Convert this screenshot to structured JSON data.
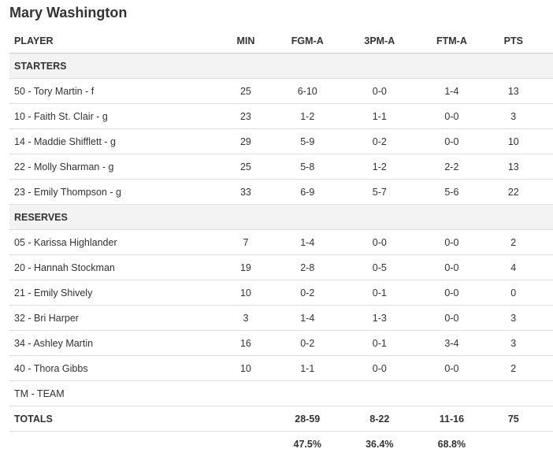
{
  "team_name": "Mary Washington",
  "headers": {
    "player": "PLAYER",
    "min": "MIN",
    "fgm": "FGM-A",
    "tpm": "3PM-A",
    "ftm": "FTM-A",
    "pts": "PTS"
  },
  "starters_label": "STARTERS",
  "starters": [
    {
      "player": "50 - Tory Martin - f",
      "min": "25",
      "fgm": "6-10",
      "tpm": "0-0",
      "ftm": "1-4",
      "pts": "13"
    },
    {
      "player": "10 - Faith St. Clair - g",
      "min": "23",
      "fgm": "1-2",
      "tpm": "1-1",
      "ftm": "0-0",
      "pts": "3"
    },
    {
      "player": "14 - Maddie Shifflett - g",
      "min": "29",
      "fgm": "5-9",
      "tpm": "0-2",
      "ftm": "0-0",
      "pts": "10"
    },
    {
      "player": "22 - Molly Sharman - g",
      "min": "25",
      "fgm": "5-8",
      "tpm": "1-2",
      "ftm": "2-2",
      "pts": "13"
    },
    {
      "player": "23 - Emily Thompson - g",
      "min": "33",
      "fgm": "6-9",
      "tpm": "5-7",
      "ftm": "5-6",
      "pts": "22"
    }
  ],
  "reserves_label": "RESERVES",
  "reserves": [
    {
      "player": "05 - Karissa Highlander",
      "min": "7",
      "fgm": "1-4",
      "tpm": "0-0",
      "ftm": "0-0",
      "pts": "2"
    },
    {
      "player": "20 - Hannah Stockman",
      "min": "19",
      "fgm": "2-8",
      "tpm": "0-5",
      "ftm": "0-0",
      "pts": "4"
    },
    {
      "player": "21 - Emily Shively",
      "min": "10",
      "fgm": "0-2",
      "tpm": "0-1",
      "ftm": "0-0",
      "pts": "0"
    },
    {
      "player": "32 - Bri Harper",
      "min": "3",
      "fgm": "1-4",
      "tpm": "1-3",
      "ftm": "0-0",
      "pts": "3"
    },
    {
      "player": "34 - Ashley Martin",
      "min": "16",
      "fgm": "0-2",
      "tpm": "0-1",
      "ftm": "3-4",
      "pts": "3"
    },
    {
      "player": "40 - Thora Gibbs",
      "min": "10",
      "fgm": "1-1",
      "tpm": "0-0",
      "ftm": "0-0",
      "pts": "2"
    }
  ],
  "team_row": {
    "player": "TM - TEAM",
    "min": "",
    "fgm": "",
    "tpm": "",
    "ftm": "",
    "pts": ""
  },
  "totals": {
    "label": "TOTALS",
    "min": "",
    "fgm": "28-59",
    "tpm": "8-22",
    "ftm": "11-16",
    "pts": "75"
  },
  "percentages": {
    "fgm": "47.5%",
    "tpm": "36.4%",
    "ftm": "68.8%"
  }
}
